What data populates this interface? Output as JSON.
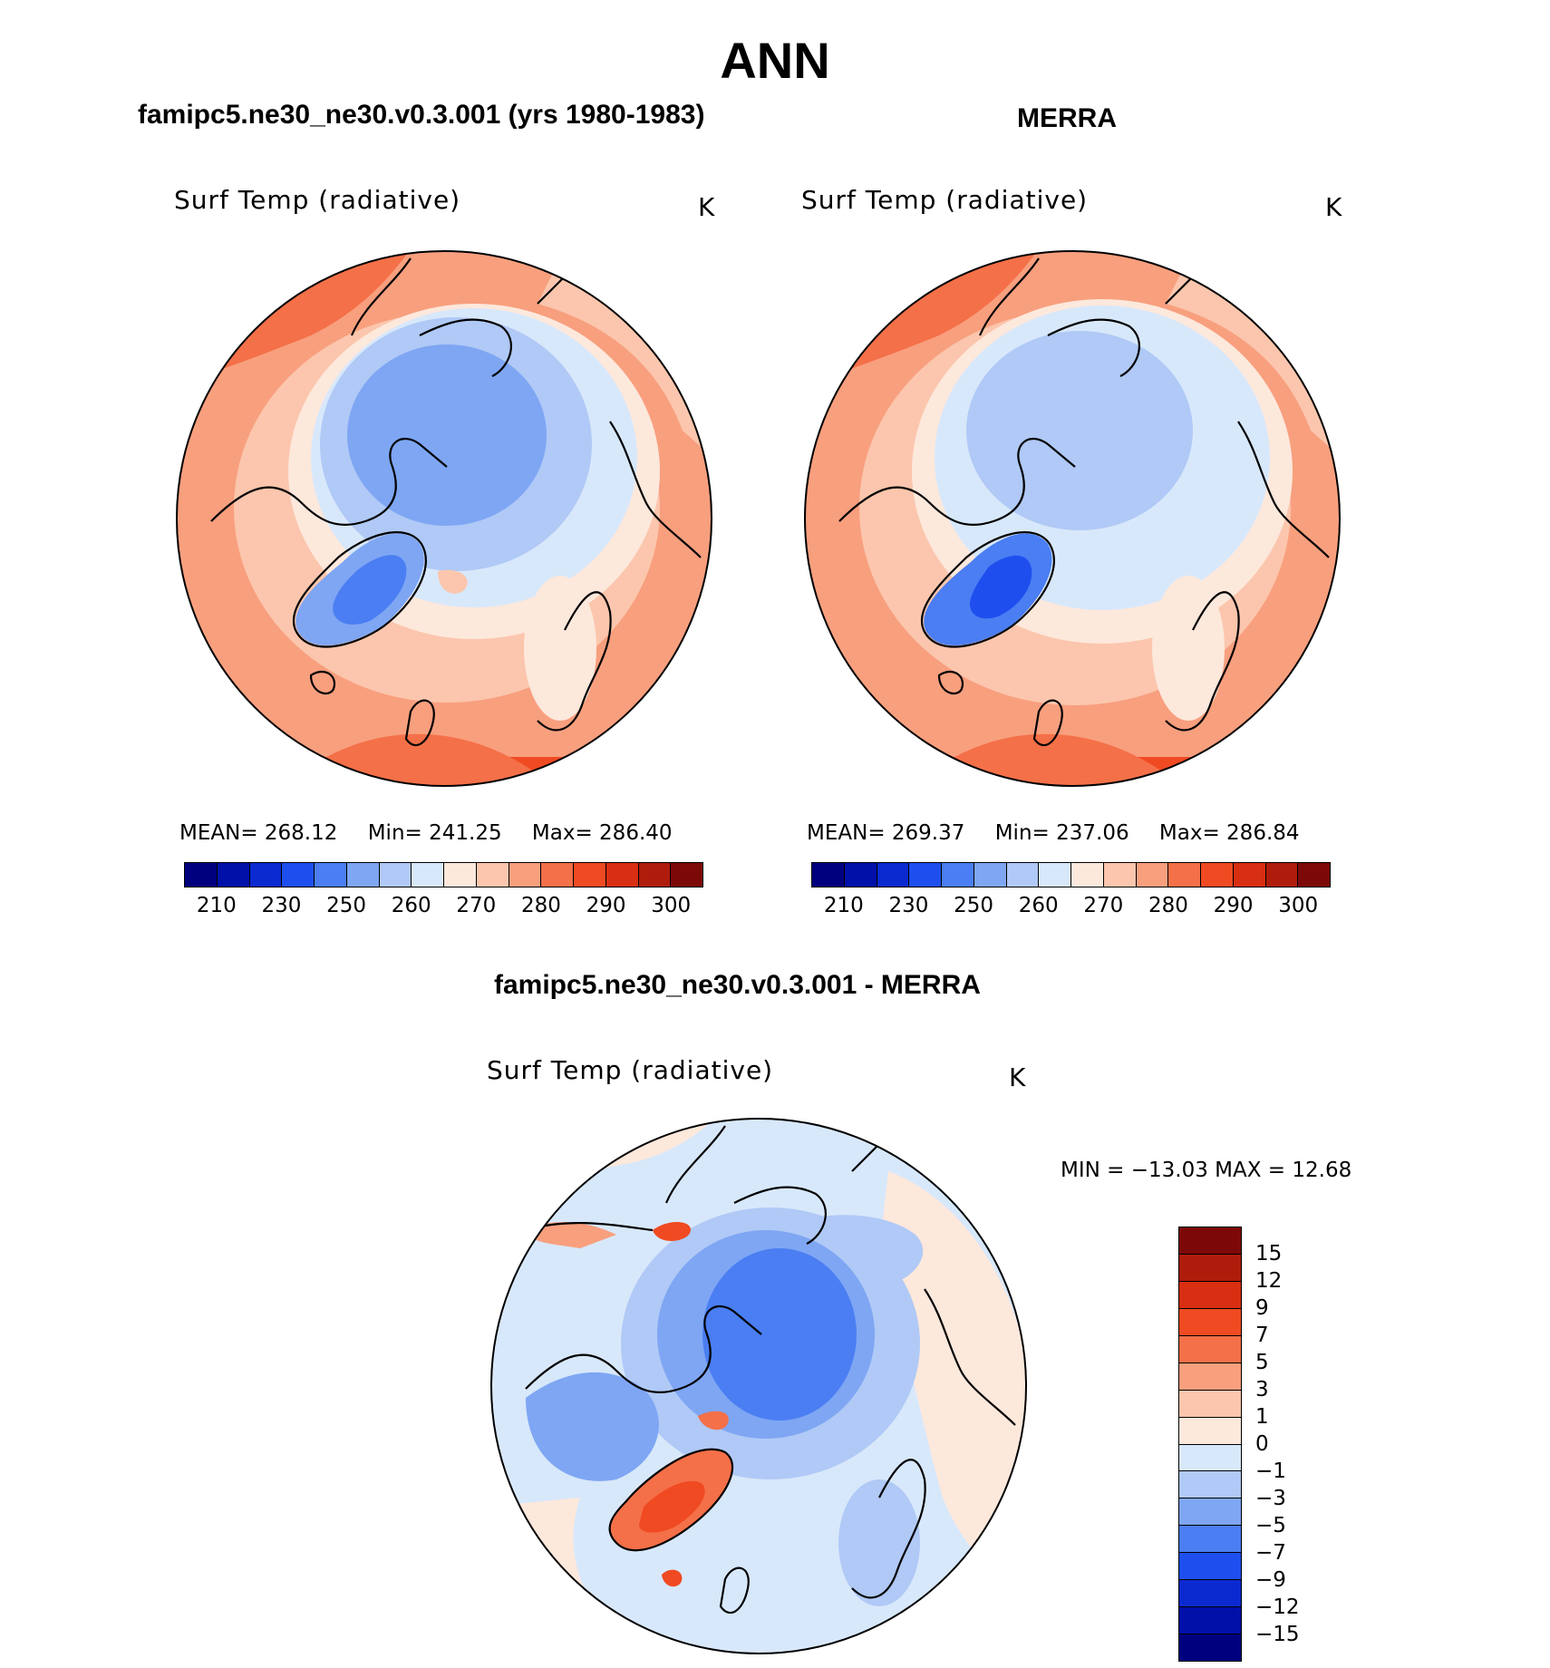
{
  "chart_data": [
    {
      "type": "contour-map",
      "panel": "left",
      "title": "famipc5.ne30_ne30.v0.3.001 (yrs 1980-1983)",
      "variable": "Surf Temp (radiative)",
      "units": "K",
      "projection": "north polar stereographic",
      "stats": {
        "mean_label": "MEAN=",
        "mean": "268.12",
        "min_label": "Min=",
        "min": "241.25",
        "max_label": "Max=",
        "max": "286.40"
      },
      "colorbar_ticks": [
        "210",
        "230",
        "250",
        "260",
        "270",
        "280",
        "290",
        "300"
      ]
    },
    {
      "type": "contour-map",
      "panel": "right",
      "title": "MERRA",
      "variable": "Surf Temp (radiative)",
      "units": "K",
      "projection": "north polar stereographic",
      "stats": {
        "mean_label": "MEAN=",
        "mean": "269.37",
        "min_label": "Min=",
        "min": "237.06",
        "max_label": "Max=",
        "max": "286.84"
      },
      "colorbar_ticks": [
        "210",
        "230",
        "250",
        "260",
        "270",
        "280",
        "290",
        "300"
      ]
    },
    {
      "type": "contour-map",
      "panel": "difference",
      "title": "famipc5.ne30_ne30.v0.3.001 - MERRA",
      "variable": "Surf Temp (radiative)",
      "units": "K",
      "projection": "north polar stereographic",
      "min_max_text": "MIN = −13.03 MAX =   12.68",
      "min": -13.03,
      "max": 12.68,
      "colorbar_ticks": [
        "15",
        "12",
        "9",
        "7",
        "5",
        "3",
        "1",
        "0",
        "−1",
        "−3",
        "−5",
        "−7",
        "−9",
        "−12",
        "−15"
      ]
    }
  ],
  "page": {
    "main_title": "ANN"
  },
  "colors": {
    "abs_levels": [
      "#00007f",
      "#0010a8",
      "#0a2ad0",
      "#1e4fee",
      "#4a7ef2",
      "#7ea6f3",
      "#b0c9f6",
      "#d8e8fb",
      "#fde8dc",
      "#fbc6ad",
      "#f89f7e",
      "#f47048",
      "#f04a22",
      "#d82e12",
      "#b01c0c",
      "#7d0808"
    ],
    "diff_levels": [
      "#7d0808",
      "#b01c0c",
      "#d82e12",
      "#f04a22",
      "#f47048",
      "#f89f7e",
      "#fbc6ad",
      "#fde8dc",
      "#d8e8fb",
      "#b0c9f6",
      "#7ea6f3",
      "#4a7ef2",
      "#1e4fee",
      "#0a2ad0",
      "#0010a8",
      "#00007f"
    ]
  }
}
